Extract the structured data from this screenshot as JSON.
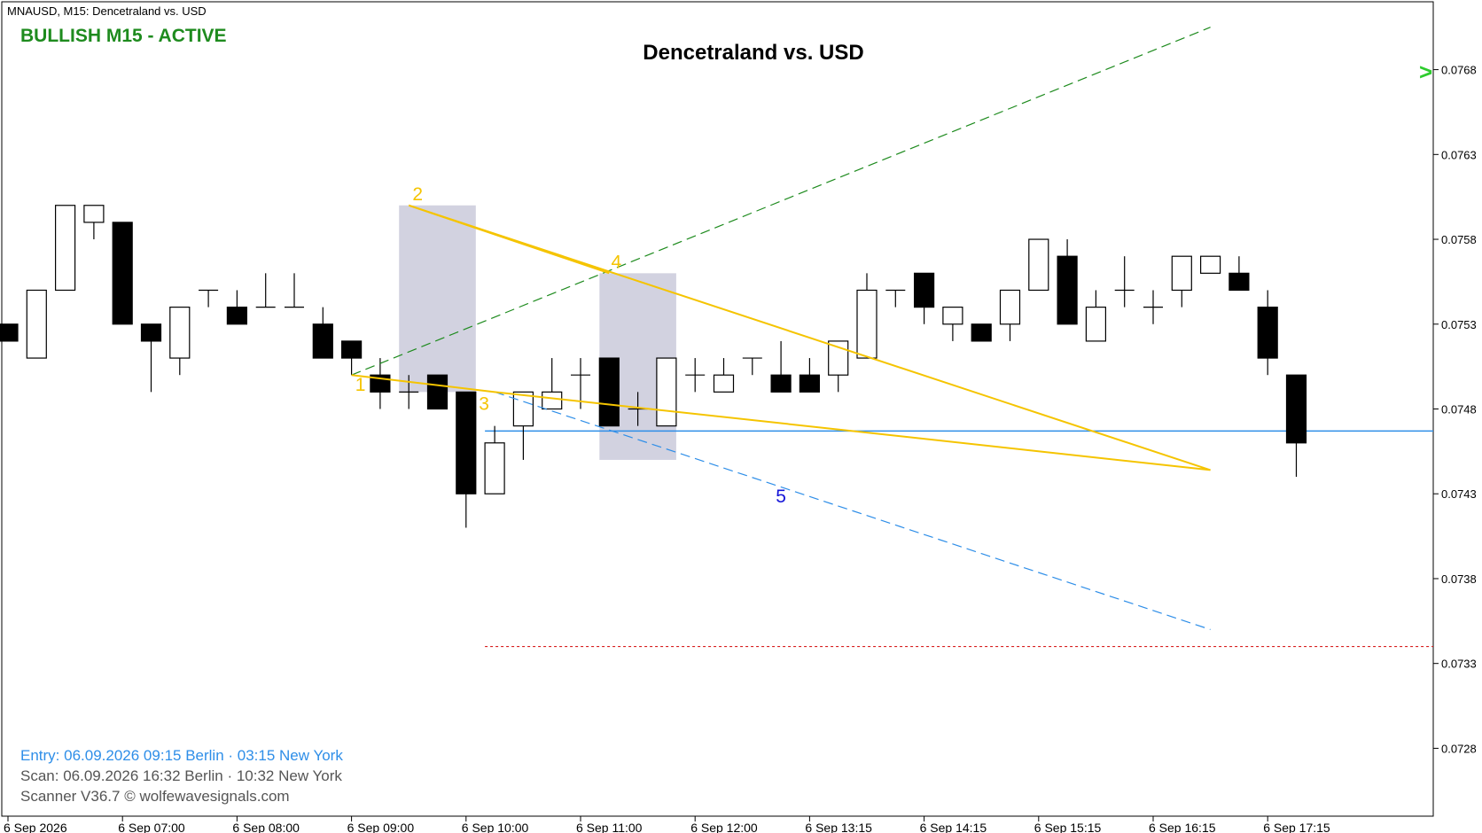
{
  "header": {
    "symbol": "MNAUSD, M15:  Dencetraland vs. USD",
    "status": "BULLISH M15 - ACTIVE",
    "title": "Dencetraland vs. USD",
    "signal_glyph": ">"
  },
  "info": {
    "entry": "Entry: 06.09.2026  09:15 Berlin · 03:15 New York",
    "scan": "Scan:  06.09.2026  16:32 Berlin · 10:32 New York",
    "footer": "Scanner V36.7   © wolfewavesignals.com"
  },
  "colors": {
    "wave": "#f5c400",
    "target": "#2e8ee8",
    "trend": "#1e8b1e",
    "stop": "#d81e1e",
    "zone": "#d2d2e0",
    "status": "#1e8b1e",
    "label5": "#1414d8"
  },
  "chart_data": {
    "type": "candlestick",
    "ylim": [
      0.0724,
      0.0772
    ],
    "y_ticks": [
      "0.0768",
      "0.0763",
      "0.0758",
      "0.0753",
      "0.0748",
      "0.0743",
      "0.0738",
      "0.0733",
      "0.0728"
    ],
    "x_ticks": [
      {
        "index": 0,
        "label": "6 Sep 2026"
      },
      {
        "index": 4,
        "label": "6 Sep 07:00"
      },
      {
        "index": 8,
        "label": "6 Sep 08:00"
      },
      {
        "index": 12,
        "label": "6 Sep 09:00"
      },
      {
        "index": 16,
        "label": "6 Sep 10:00"
      },
      {
        "index": 20,
        "label": "6 Sep 11:00"
      },
      {
        "index": 24,
        "label": "6 Sep 12:00"
      },
      {
        "index": 28,
        "label": "6 Sep 13:15"
      },
      {
        "index": 32,
        "label": "6 Sep 14:15"
      },
      {
        "index": 36,
        "label": "6 Sep 15:15"
      },
      {
        "index": 40,
        "label": "6 Sep 16:15"
      },
      {
        "index": 44,
        "label": "6 Sep 17:15"
      }
    ],
    "candles": [
      {
        "o": 0.0753,
        "h": 0.0753,
        "l": 0.0752,
        "c": 0.0752
      },
      {
        "o": 0.0751,
        "h": 0.0755,
        "l": 0.0751,
        "c": 0.0755
      },
      {
        "o": 0.0755,
        "h": 0.076,
        "l": 0.0755,
        "c": 0.076
      },
      {
        "o": 0.0759,
        "h": 0.076,
        "l": 0.0758,
        "c": 0.076
      },
      {
        "o": 0.0759,
        "h": 0.0759,
        "l": 0.0753,
        "c": 0.0753
      },
      {
        "o": 0.0753,
        "h": 0.0753,
        "l": 0.0749,
        "c": 0.0752
      },
      {
        "o": 0.0751,
        "h": 0.0754,
        "l": 0.075,
        "c": 0.0754
      },
      {
        "o": 0.0755,
        "h": 0.0755,
        "l": 0.0754,
        "c": 0.0755
      },
      {
        "o": 0.0754,
        "h": 0.0755,
        "l": 0.0753,
        "c": 0.0753
      },
      {
        "o": 0.0754,
        "h": 0.0756,
        "l": 0.0754,
        "c": 0.0754
      },
      {
        "o": 0.0754,
        "h": 0.0756,
        "l": 0.0754,
        "c": 0.0754
      },
      {
        "o": 0.0753,
        "h": 0.0754,
        "l": 0.0751,
        "c": 0.0751
      },
      {
        "o": 0.0752,
        "h": 0.0752,
        "l": 0.075,
        "c": 0.0751
      },
      {
        "o": 0.075,
        "h": 0.0751,
        "l": 0.0748,
        "c": 0.0749
      },
      {
        "o": 0.0749,
        "h": 0.075,
        "l": 0.0748,
        "c": 0.0749
      },
      {
        "o": 0.075,
        "h": 0.075,
        "l": 0.0748,
        "c": 0.0748
      },
      {
        "o": 0.0749,
        "h": 0.0749,
        "l": 0.0741,
        "c": 0.0743
      },
      {
        "o": 0.0743,
        "h": 0.0747,
        "l": 0.0743,
        "c": 0.0746
      },
      {
        "o": 0.0747,
        "h": 0.0749,
        "l": 0.0745,
        "c": 0.0749
      },
      {
        "o": 0.0748,
        "h": 0.0751,
        "l": 0.0748,
        "c": 0.0749
      },
      {
        "o": 0.075,
        "h": 0.0751,
        "l": 0.0748,
        "c": 0.075
      },
      {
        "o": 0.0751,
        "h": 0.0751,
        "l": 0.0747,
        "c": 0.0747
      },
      {
        "o": 0.0748,
        "h": 0.0749,
        "l": 0.0747,
        "c": 0.0748
      },
      {
        "o": 0.0747,
        "h": 0.0751,
        "l": 0.0747,
        "c": 0.0751
      },
      {
        "o": 0.075,
        "h": 0.0751,
        "l": 0.0749,
        "c": 0.075
      },
      {
        "o": 0.0749,
        "h": 0.0751,
        "l": 0.0749,
        "c": 0.075
      },
      {
        "o": 0.0751,
        "h": 0.0751,
        "l": 0.075,
        "c": 0.0751
      },
      {
        "o": 0.075,
        "h": 0.0752,
        "l": 0.0749,
        "c": 0.0749
      },
      {
        "o": 0.075,
        "h": 0.0751,
        "l": 0.0749,
        "c": 0.0749
      },
      {
        "o": 0.075,
        "h": 0.0752,
        "l": 0.0749,
        "c": 0.0752
      },
      {
        "o": 0.0751,
        "h": 0.0756,
        "l": 0.0751,
        "c": 0.0755
      },
      {
        "o": 0.0755,
        "h": 0.0755,
        "l": 0.0754,
        "c": 0.0755
      },
      {
        "o": 0.0756,
        "h": 0.0756,
        "l": 0.0753,
        "c": 0.0754
      },
      {
        "o": 0.0753,
        "h": 0.0754,
        "l": 0.0752,
        "c": 0.0754
      },
      {
        "o": 0.0753,
        "h": 0.0753,
        "l": 0.0752,
        "c": 0.0752
      },
      {
        "o": 0.0753,
        "h": 0.0755,
        "l": 0.0752,
        "c": 0.0755
      },
      {
        "o": 0.0755,
        "h": 0.0758,
        "l": 0.0755,
        "c": 0.0758
      },
      {
        "o": 0.0757,
        "h": 0.0758,
        "l": 0.0753,
        "c": 0.0753
      },
      {
        "o": 0.0752,
        "h": 0.0755,
        "l": 0.0752,
        "c": 0.0754
      },
      {
        "o": 0.0755,
        "h": 0.0757,
        "l": 0.0754,
        "c": 0.0755
      },
      {
        "o": 0.0754,
        "h": 0.0755,
        "l": 0.0753,
        "c": 0.0754
      },
      {
        "o": 0.0755,
        "h": 0.0757,
        "l": 0.0754,
        "c": 0.0757
      },
      {
        "o": 0.0756,
        "h": 0.0757,
        "l": 0.0756,
        "c": 0.0757
      },
      {
        "o": 0.0756,
        "h": 0.0757,
        "l": 0.0755,
        "c": 0.0755
      },
      {
        "o": 0.0754,
        "h": 0.0755,
        "l": 0.075,
        "c": 0.0751
      },
      {
        "o": 0.075,
        "h": 0.075,
        "l": 0.0744,
        "c": 0.0746
      }
    ],
    "wolfe_points": [
      {
        "label": "1",
        "index": 12,
        "price": 0.075
      },
      {
        "label": "2",
        "index": 14,
        "price": 0.076
      },
      {
        "label": "3",
        "index": 17,
        "price": 0.0749
      },
      {
        "label": "4",
        "index": 21,
        "price": 0.0756
      },
      {
        "label": "apex",
        "index": 42,
        "price": 0.07444
      }
    ],
    "label5": {
      "label": "5",
      "index": 27,
      "price": 0.07425
    },
    "trend_line": {
      "from": {
        "index": 12,
        "price": 0.075
      },
      "to": {
        "index": 42,
        "price": 0.07705
      }
    },
    "target_line": {
      "from": {
        "index": 17,
        "price": 0.0749
      },
      "to": {
        "index": 42,
        "price": 0.0735
      }
    },
    "entry_level": {
      "from_index": 17,
      "price": 0.07467
    },
    "stop_level": {
      "from_index": 17,
      "price": 0.0734
    },
    "zones": [
      {
        "from_index": 14,
        "to_index": 16,
        "high": 0.076,
        "low": 0.0749
      },
      {
        "from_index": 21,
        "to_index": 23,
        "high": 0.0756,
        "low": 0.0745
      }
    ]
  }
}
